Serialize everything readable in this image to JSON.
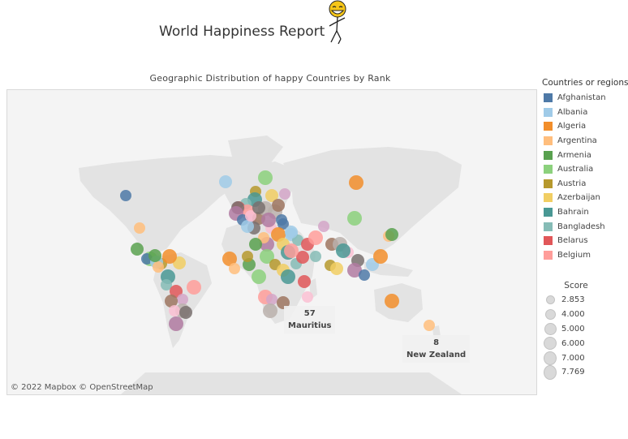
{
  "header": {
    "title": "World Happiness Report",
    "subtitle": "Geographic Distribution of happy Countries by Rank"
  },
  "map": {
    "attribution": "© 2022 Mapbox  © OpenStreetMap",
    "annotations": [
      {
        "rank": "57",
        "country": "Mauritius"
      },
      {
        "rank": "8",
        "country": "New Zealand"
      }
    ]
  },
  "color_legend": {
    "title": "Countries or regions",
    "items": [
      {
        "label": "Afghanistan",
        "color": "#4e79a7"
      },
      {
        "label": "Albania",
        "color": "#a0cbe8"
      },
      {
        "label": "Algeria",
        "color": "#f28e2b"
      },
      {
        "label": "Argentina",
        "color": "#ffbe7d"
      },
      {
        "label": "Armenia",
        "color": "#59a14f"
      },
      {
        "label": "Australia",
        "color": "#8cd17d"
      },
      {
        "label": "Austria",
        "color": "#b6992d"
      },
      {
        "label": "Azerbaijan",
        "color": "#f1ce63"
      },
      {
        "label": "Bahrain",
        "color": "#499894"
      },
      {
        "label": "Bangladesh",
        "color": "#86bcb6"
      },
      {
        "label": "Belarus",
        "color": "#e15759"
      },
      {
        "label": "Belgium",
        "color": "#ff9d9a"
      }
    ]
  },
  "size_legend": {
    "title": "Score",
    "items": [
      "2.853",
      "4.000",
      "5.000",
      "6.000",
      "7.000",
      "7.769"
    ]
  },
  "colors": {
    "land": "#e3e3e3",
    "ocean": "#f4f4f4"
  }
}
